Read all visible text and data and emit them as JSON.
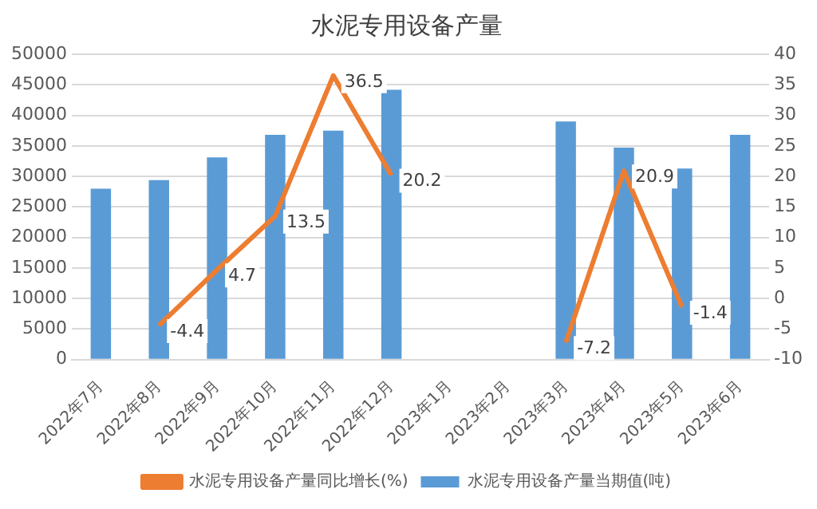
{
  "chart_data": {
    "type": "bar",
    "title": "水泥专用设备产量",
    "categories": [
      "2022年7月",
      "2022年8月",
      "2022年9月",
      "2022年10月",
      "2022年11月",
      "2022年12月",
      "2023年1月",
      "2023年2月",
      "2023年3月",
      "2023年4月",
      "2023年5月",
      "2023年6月"
    ],
    "series": [
      {
        "name": "水泥专用设备产量当期值(吨)",
        "color": "#5b9bd5",
        "values": [
          28000,
          29400,
          33100,
          36800,
          37500,
          44200,
          null,
          null,
          39000,
          34700,
          31300,
          36800
        ]
      },
      {
        "name": "水泥专用设备产量同比增长(%)",
        "type": "line",
        "axis": "y2",
        "color": "#ed7d31",
        "values": [
          null,
          -4.4,
          4.7,
          13.5,
          36.5,
          20.2,
          null,
          null,
          -7.2,
          20.9,
          -1.4,
          null
        ],
        "value_labels": [
          null,
          "-4.4",
          "4.7",
          "13.5",
          "36.5",
          "20.2",
          null,
          null,
          "-7.2",
          "20.9",
          "-1.4",
          null
        ]
      }
    ],
    "ylim": [
      0,
      50000
    ],
    "yticks": [
      0,
      5000,
      10000,
      15000,
      20000,
      25000,
      30000,
      35000,
      40000,
      45000,
      50000
    ],
    "y2lim": [
      -10,
      40
    ],
    "y2ticks": [
      -10,
      -5,
      0,
      5,
      10,
      15,
      20,
      25,
      30,
      35,
      40
    ],
    "grid": "y",
    "legend": "bottom",
    "marker": "none"
  }
}
